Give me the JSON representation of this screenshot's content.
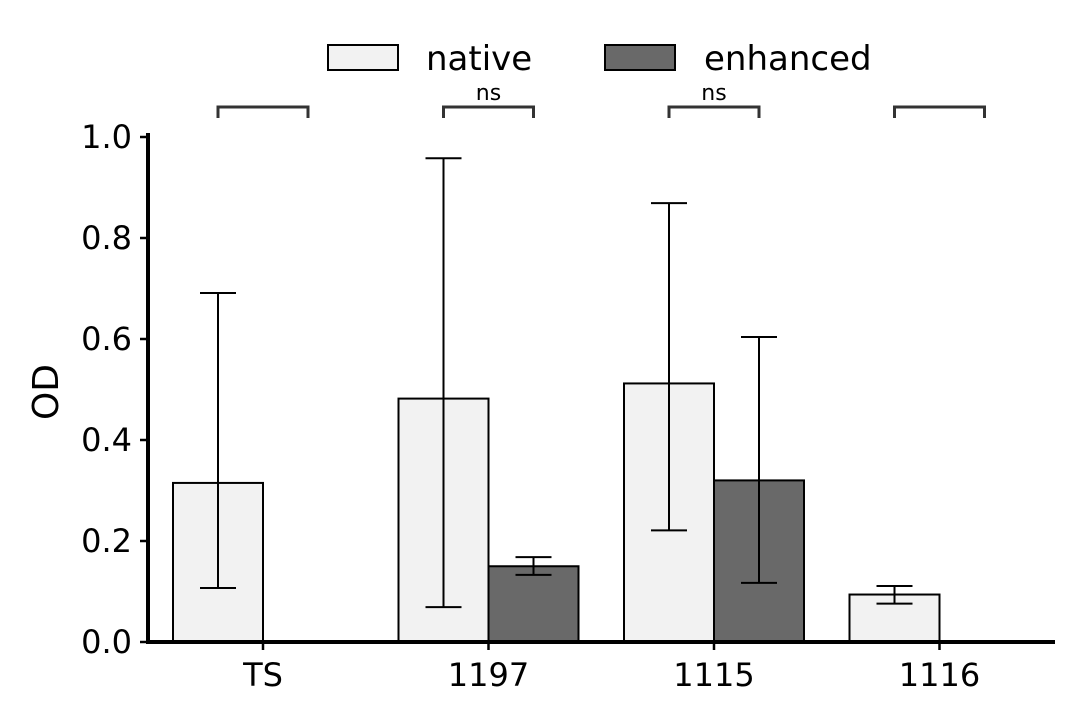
{
  "chart_data": {
    "type": "bar",
    "title": "",
    "xlabel": "",
    "ylabel": "OD",
    "ylim": [
      0,
      1.0
    ],
    "yticks": [
      "0.0",
      "0.2",
      "0.4",
      "0.6",
      "0.8",
      "1.0"
    ],
    "categories": [
      "TS",
      "1197",
      "1115",
      "1116"
    ],
    "series": [
      {
        "name": "native",
        "color": "#f2f2f2",
        "values": [
          0.315,
          0.482,
          0.512,
          0.094
        ],
        "err_low": [
          0.107,
          0.069,
          0.221,
          0.076
        ],
        "err_high": [
          0.691,
          0.958,
          0.869,
          0.111
        ]
      },
      {
        "name": "enhanced",
        "color": "#696969",
        "values": [
          null,
          0.15,
          0.32,
          null
        ],
        "err_low": [
          null,
          0.133,
          0.117,
          null
        ],
        "err_high": [
          null,
          0.168,
          0.604,
          null
        ]
      }
    ],
    "significance": [
      "",
      "ns",
      "ns",
      ""
    ],
    "legend_position": "top-center",
    "grid": false
  }
}
